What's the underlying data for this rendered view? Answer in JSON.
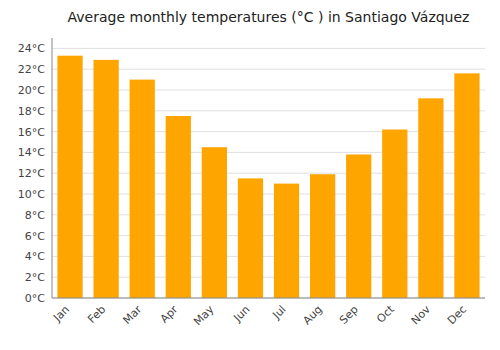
{
  "chart_data": {
    "type": "bar",
    "title": "Average monthly temperatures (°C ) in Santiago Vázquez",
    "categories": [
      "Jan",
      "Feb",
      "Mar",
      "Apr",
      "May",
      "Jun",
      "Jul",
      "Aug",
      "Sep",
      "Oct",
      "Nov",
      "Dec"
    ],
    "values": [
      23.3,
      22.9,
      21.0,
      17.5,
      14.5,
      11.5,
      11.0,
      11.9,
      13.8,
      16.2,
      19.2,
      21.6
    ],
    "color": "#FFA500",
    "ylim": [
      0,
      25
    ],
    "yticks": [
      {
        "value": 0,
        "label": "0°C"
      },
      {
        "value": 2,
        "label": "2°C"
      },
      {
        "value": 4,
        "label": "4°C"
      },
      {
        "value": 6,
        "label": "6°C"
      },
      {
        "value": 8,
        "label": "8°C"
      },
      {
        "value": 10,
        "label": "10°C"
      },
      {
        "value": 12,
        "label": "12°C"
      },
      {
        "value": 14,
        "label": "14°C"
      },
      {
        "value": 16,
        "label": "16°C"
      },
      {
        "value": 18,
        "label": "18°C"
      },
      {
        "value": 20,
        "label": "20°C"
      },
      {
        "value": 22,
        "label": "22°C"
      },
      {
        "value": 24,
        "label": "24°C"
      }
    ],
    "grid": true
  }
}
